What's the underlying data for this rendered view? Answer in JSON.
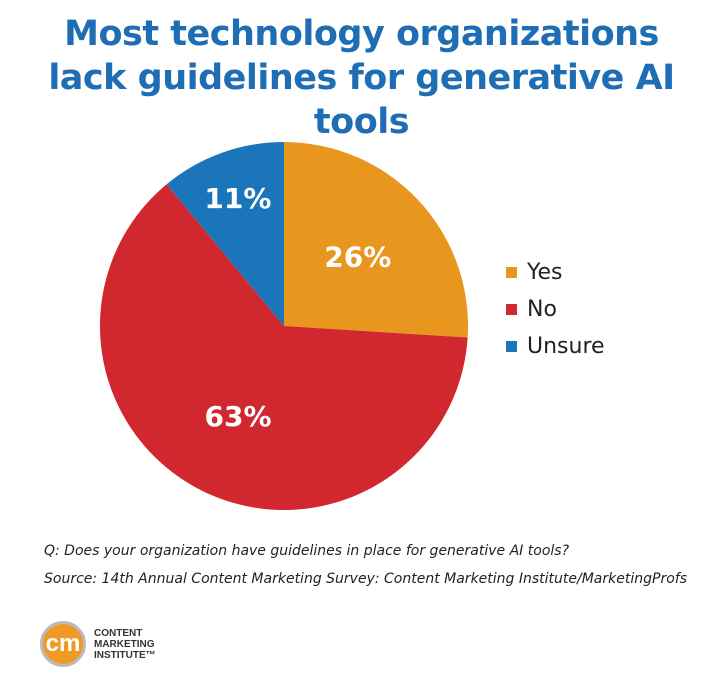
{
  "title_lines": [
    "Most technology organizations",
    "lack guidelines for generative AI tools"
  ],
  "chart_data": {
    "type": "pie",
    "title": "Most technology organizations lack guidelines for generative AI tools",
    "categories": [
      "Yes",
      "No",
      "Unsure"
    ],
    "values": [
      26,
      63,
      11
    ],
    "labels": [
      "26%",
      "63%",
      "11%"
    ],
    "colors": [
      "#e8961e",
      "#d0282e",
      "#1b75bb"
    ],
    "start": "top, clockwise",
    "legend_placement": "right"
  },
  "question": "Q: Does your organization have guidelines in place for generative AI tools?",
  "source": "Source: 14th Annual Content Marketing Survey: Content Marketing Institute/MarketingProfs",
  "logo": {
    "mark": "cm",
    "lines": [
      "CONTENT",
      "MARKETING",
      "INSTITUTE™"
    ]
  }
}
